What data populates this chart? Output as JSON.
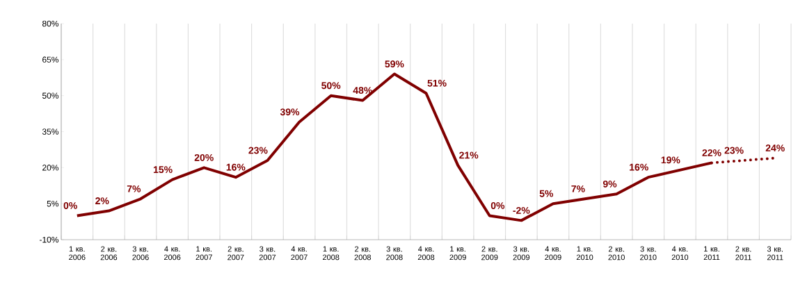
{
  "chart_data": {
    "type": "line",
    "categories": [
      "1 кв. 2006",
      "2 кв. 2006",
      "3 кв. 2006",
      "4 кв. 2006",
      "1 кв. 2007",
      "2 кв. 2007",
      "3 кв. 2007",
      "4 кв. 2007",
      "1 кв. 2008",
      "2 кв. 2008",
      "3 кв. 2008",
      "4 кв. 2008",
      "1 кв. 2009",
      "2 кв. 2009",
      "3 кв. 2009",
      "4 кв. 2009",
      "1 кв. 2010",
      "2 кв. 2010",
      "3 кв. 2010",
      "4 кв. 2010",
      "1 кв. 2011",
      "2 кв. 2011",
      "3 кв. 2011"
    ],
    "ylim": [
      -10,
      80
    ],
    "yticks": [
      {
        "value": -10,
        "label": "-10%"
      },
      {
        "value": 5,
        "label": "5%"
      },
      {
        "value": 20,
        "label": "20%"
      },
      {
        "value": 35,
        "label": "35%"
      },
      {
        "value": 50,
        "label": "50%"
      },
      {
        "value": 65,
        "label": "65%"
      },
      {
        "value": 80,
        "label": "80%"
      }
    ],
    "grid": "x",
    "marker": "none",
    "series": [
      {
        "color": "#800000",
        "line_style": "solid",
        "values": [
          0,
          2,
          7,
          15,
          20,
          16,
          23,
          39,
          50,
          48,
          59,
          51,
          21,
          0,
          -2,
          5,
          7,
          9,
          16,
          19,
          22,
          null,
          null
        ],
        "value_labels": [
          "0%",
          "2%",
          "7%",
          "15%",
          "20%",
          "16%",
          "23%",
          "39%",
          "50%",
          "48%",
          "59%",
          "51%",
          "21%",
          "0%",
          "-2%",
          "5%",
          "7%",
          "9%",
          "16%",
          "19%",
          "22%",
          null,
          null
        ]
      },
      {
        "color": "#800000",
        "line_style": "dotted",
        "values": [
          null,
          null,
          null,
          null,
          null,
          null,
          null,
          null,
          null,
          null,
          null,
          null,
          null,
          null,
          null,
          null,
          null,
          null,
          null,
          null,
          22,
          23,
          24
        ],
        "value_labels": [
          null,
          null,
          null,
          null,
          null,
          null,
          null,
          null,
          null,
          null,
          null,
          null,
          null,
          null,
          null,
          null,
          null,
          null,
          null,
          null,
          null,
          "23%",
          "24%"
        ]
      }
    ]
  }
}
